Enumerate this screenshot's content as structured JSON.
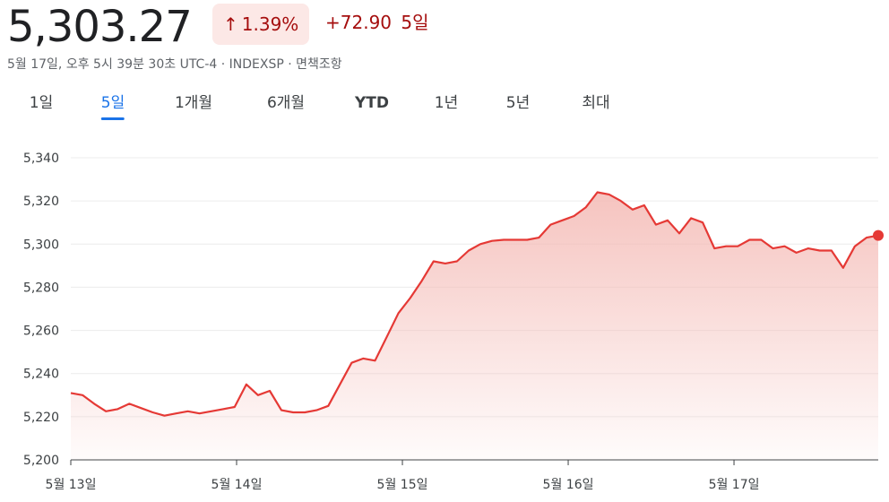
{
  "header": {
    "price": "5,303.27",
    "percent_change": "1.39%",
    "absolute_change": "+72.90",
    "period": "5일"
  },
  "meta_line": "5월 17일, 오후 5시 39분 30초 UTC-4 · INDEXSP · 면책조항",
  "tabs": [
    {
      "label": "1일"
    },
    {
      "label": "5일"
    },
    {
      "label": "1개월"
    },
    {
      "label": "6개월"
    },
    {
      "label": "YTD"
    },
    {
      "label": "1년"
    },
    {
      "label": "5년"
    },
    {
      "label": "최대"
    }
  ],
  "active_tab": "5일",
  "colors": {
    "line": "#e53935",
    "fill": "#f4b9b4",
    "dot": "#e53935",
    "grid": "#ececec",
    "axis": "#3c4043",
    "badge_bg": "#fce8e6",
    "negative_text": "#a50e0e",
    "tab_active": "#1a73e8"
  },
  "chart_data": {
    "type": "area",
    "title": "",
    "xlabel": "",
    "ylabel": "",
    "ylim": [
      5200,
      5340
    ],
    "y_ticks": [
      "5,200",
      "5,220",
      "5,240",
      "5,260",
      "5,280",
      "5,300",
      "5,320",
      "5,340"
    ],
    "x_ticks": [
      "5월 13일",
      "5월 14일",
      "5월 15일",
      "5월 16일",
      "5월 17일"
    ],
    "grid": true,
    "last_point_marker": true,
    "series": [
      {
        "values": [
          5231,
          5230,
          5226,
          5222.5,
          5223.5,
          5226,
          5224,
          5222,
          5220.5,
          5221.5,
          5222.5,
          5221.5,
          5222.5,
          5223.5,
          5224.5,
          5235,
          5230,
          5232,
          5223,
          5222,
          5222,
          5223,
          5225,
          5235,
          5245,
          5247,
          5246,
          5257,
          5268,
          5275,
          5283,
          5292,
          5291,
          5292,
          5297,
          5300,
          5301.5,
          5302,
          5302,
          5302,
          5303,
          5309,
          5311,
          5313,
          5317,
          5324,
          5323,
          5320,
          5316,
          5318,
          5309,
          5311,
          5305,
          5312,
          5310,
          5298,
          5299,
          5299,
          5302,
          5302,
          5298,
          5299,
          5296,
          5298,
          5297,
          5297,
          5289,
          5299,
          5303,
          5304
        ]
      }
    ]
  }
}
